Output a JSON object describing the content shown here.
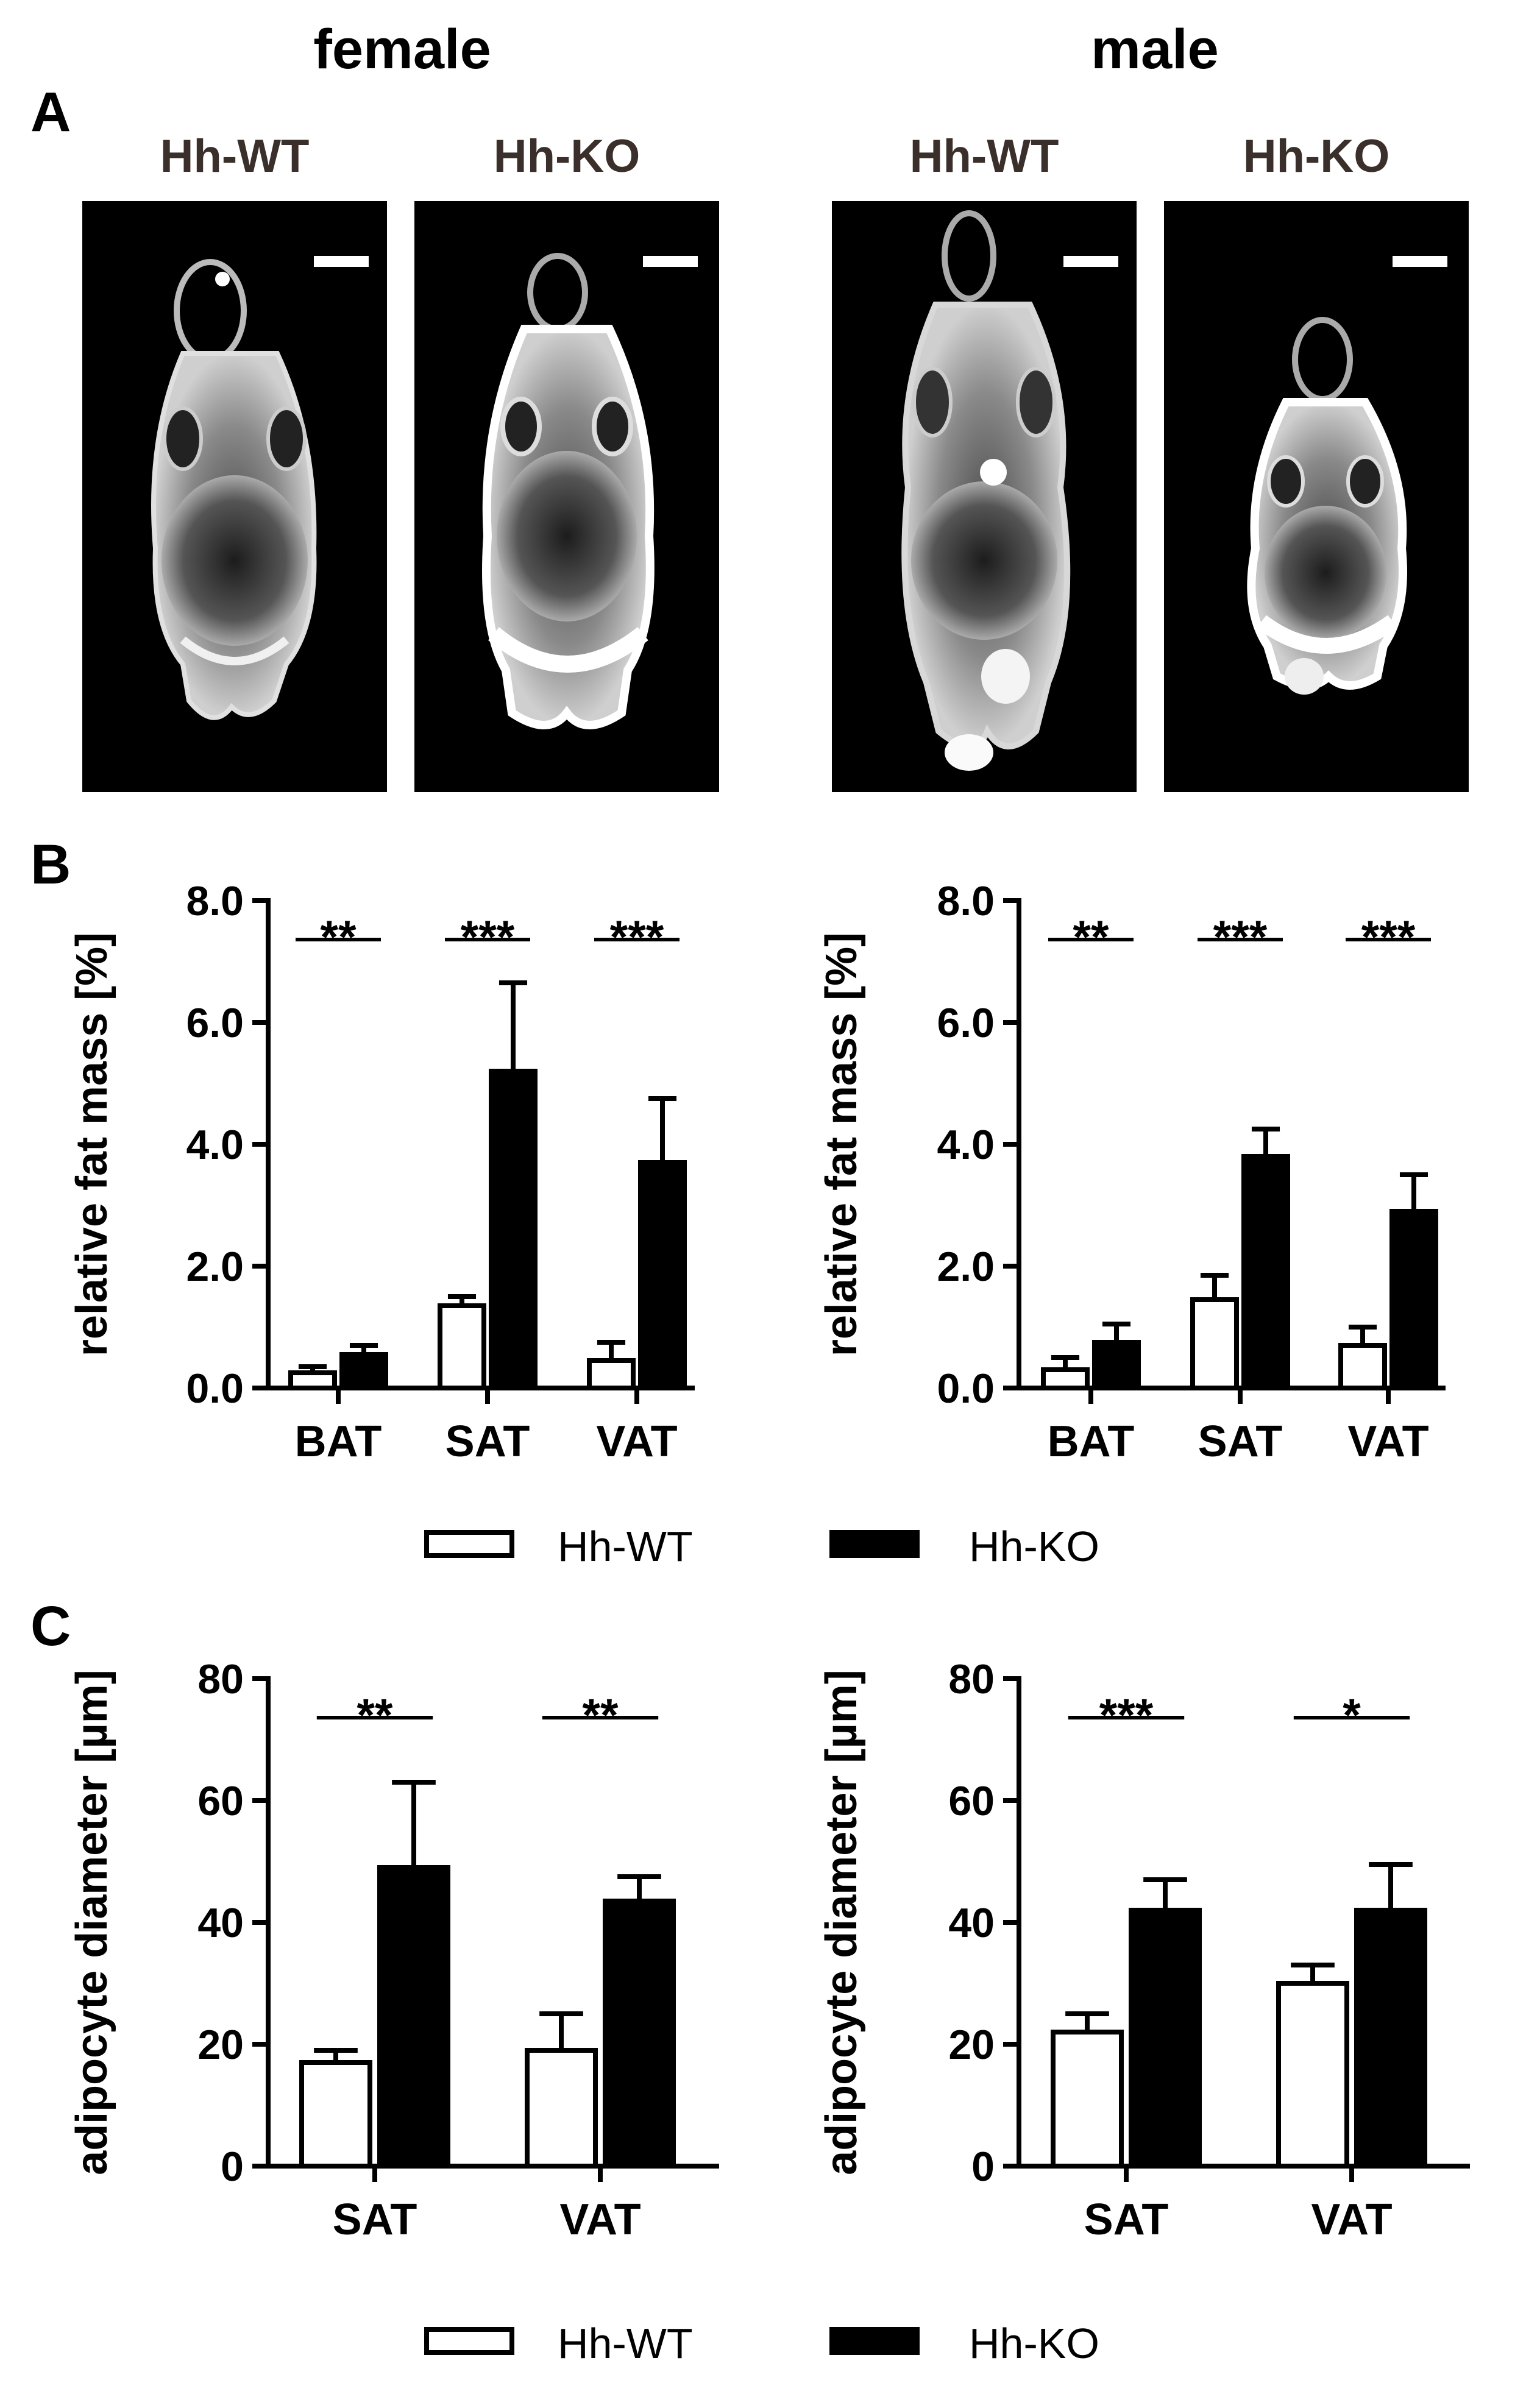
{
  "headers": {
    "female": "female",
    "male": "male"
  },
  "panel_letters": {
    "a": "A",
    "b": "B",
    "c": "C"
  },
  "mri": {
    "labels": [
      "Hh-WT",
      "Hh-KO",
      "Hh-WT",
      "Hh-KO"
    ]
  },
  "legend": {
    "wt_label": "Hh-WT",
    "ko_label": "Hh-KO"
  },
  "colors": {
    "wt_fill": "#ffffff",
    "ko_fill": "#000000",
    "stroke": "#000000"
  },
  "chart_data": [
    {
      "id": "b_female",
      "type": "bar",
      "categories": [
        "BAT",
        "SAT",
        "VAT"
      ],
      "series": [
        {
          "name": "Hh-WT",
          "values": [
            0.25,
            1.35,
            0.45
          ],
          "errors": [
            0.1,
            0.15,
            0.3
          ]
        },
        {
          "name": "Hh-KO",
          "values": [
            0.55,
            5.2,
            3.7
          ],
          "errors": [
            0.15,
            1.45,
            1.05
          ]
        }
      ],
      "significance": [
        "**",
        "***",
        "***"
      ],
      "ylabel": "relative fat mass [%]",
      "ylim": [
        0,
        8
      ],
      "yticks": [
        "0.0",
        "2.0",
        "4.0",
        "6.0",
        "8.0"
      ]
    },
    {
      "id": "b_male",
      "type": "bar",
      "categories": [
        "BAT",
        "SAT",
        "VAT"
      ],
      "series": [
        {
          "name": "Hh-WT",
          "values": [
            0.3,
            1.45,
            0.7
          ],
          "errors": [
            0.2,
            0.4,
            0.3
          ]
        },
        {
          "name": "Hh-KO",
          "values": [
            0.75,
            3.8,
            2.9
          ],
          "errors": [
            0.3,
            0.45,
            0.6
          ]
        }
      ],
      "significance": [
        "**",
        "***",
        "***"
      ],
      "ylabel": "relative fat mass [%]",
      "ylim": [
        0,
        8
      ],
      "yticks": [
        "0.0",
        "2.0",
        "4.0",
        "6.0",
        "8.0"
      ]
    },
    {
      "id": "c_female",
      "type": "bar",
      "categories": [
        "SAT",
        "VAT"
      ],
      "series": [
        {
          "name": "Hh-WT",
          "values": [
            17,
            19
          ],
          "errors": [
            2,
            6
          ]
        },
        {
          "name": "Hh-KO",
          "values": [
            49,
            43.5
          ],
          "errors": [
            14,
            4
          ]
        }
      ],
      "significance": [
        "**",
        "**"
      ],
      "ylabel": "adipocyte diameter [µm]",
      "ylim": [
        0,
        80
      ],
      "yticks": [
        "0",
        "20",
        "40",
        "60",
        "80"
      ]
    },
    {
      "id": "c_male",
      "type": "bar",
      "categories": [
        "SAT",
        "VAT"
      ],
      "series": [
        {
          "name": "Hh-WT",
          "values": [
            22,
            30
          ],
          "errors": [
            3,
            3
          ]
        },
        {
          "name": "Hh-KO",
          "values": [
            42,
            42
          ],
          "errors": [
            5,
            7.5
          ]
        }
      ],
      "significance": [
        "***",
        "*"
      ],
      "ylabel": "adipocyte diameter [µm]",
      "ylim": [
        0,
        80
      ],
      "yticks": [
        "0",
        "20",
        "40",
        "60",
        "80"
      ]
    }
  ]
}
